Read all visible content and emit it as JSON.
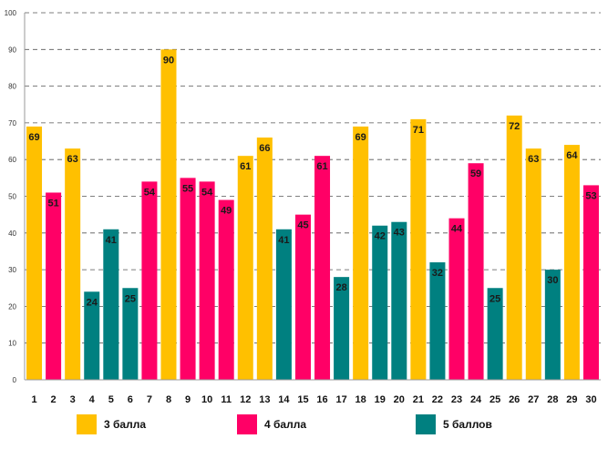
{
  "chart_data": {
    "type": "bar",
    "title": "",
    "xlabel": "",
    "ylabel": "",
    "ylim": [
      0,
      100
    ],
    "ytick_step": 10,
    "grid": true,
    "legend_position": "bottom",
    "categories": [
      "1",
      "2",
      "3",
      "4",
      "5",
      "6",
      "7",
      "8",
      "9",
      "10",
      "11",
      "12",
      "13",
      "14",
      "15",
      "16",
      "17",
      "18",
      "19",
      "20",
      "21",
      "22",
      "23",
      "24",
      "25",
      "26",
      "27",
      "28",
      "29",
      "30"
    ],
    "values": [
      69,
      51,
      63,
      24,
      41,
      25,
      54,
      90,
      55,
      54,
      49,
      61,
      66,
      41,
      45,
      61,
      28,
      69,
      42,
      43,
      71,
      32,
      44,
      59,
      25,
      72,
      63,
      30,
      64,
      53
    ],
    "series_index": [
      0,
      1,
      0,
      2,
      2,
      2,
      1,
      0,
      1,
      1,
      1,
      0,
      0,
      2,
      1,
      1,
      2,
      0,
      2,
      2,
      0,
      2,
      1,
      1,
      2,
      0,
      0,
      2,
      0,
      1
    ],
    "series": [
      {
        "name": "3 балла",
        "color": "#FFC000"
      },
      {
        "name": "4 балла",
        "color": "#FF0066"
      },
      {
        "name": "5 баллов",
        "color": "#008080"
      }
    ]
  }
}
